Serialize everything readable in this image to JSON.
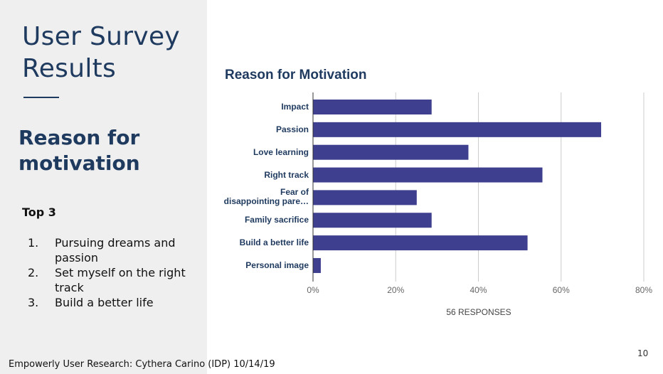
{
  "slide": {
    "title": "User Survey Results",
    "subtitle": "Reason for motivation",
    "top3_heading": "Top 3",
    "top3": [
      {
        "num": "1.",
        "text": "Pursuing dreams and passion"
      },
      {
        "num": "2.",
        "text": "Set myself on the right track"
      },
      {
        "num": "3.",
        "text": "Build a better life"
      }
    ],
    "footer": "Empowerly User Research: Cythera Carino (IDP) 10/14/19",
    "page_number": "10",
    "colors": {
      "left_panel": "#efefef",
      "heading": "#1f3a5f",
      "bar": "#3f3f8f"
    }
  },
  "chart_data": {
    "type": "bar",
    "orientation": "horizontal",
    "title": "Reason for Motivation",
    "categories": [
      "Impact",
      "Passion",
      "Love learning",
      "Right track",
      "Fear of disappointing pare…",
      "Family sacrifice",
      "Build a better life",
      "Personal image"
    ],
    "values": [
      28.6,
      69.6,
      37.5,
      55.4,
      25.0,
      28.6,
      51.8,
      1.8
    ],
    "x_ticks": [
      "0%",
      "20%",
      "40%",
      "60%",
      "80%"
    ],
    "xlim": [
      0,
      80
    ],
    "xlabel": "56 RESPONSES",
    "grid": true
  }
}
